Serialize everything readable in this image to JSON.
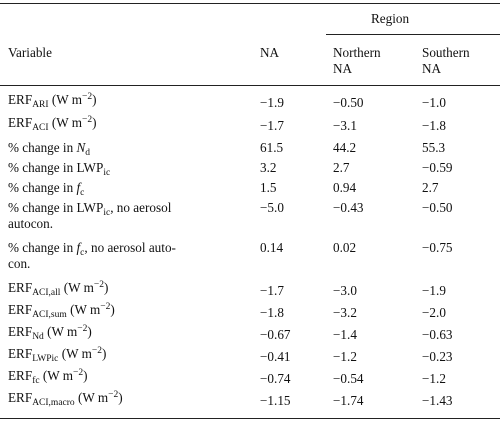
{
  "table": {
    "region_header": "Region",
    "columns": [
      "Variable",
      "NA",
      "Northern NA",
      "Southern NA"
    ],
    "rows": [
      {
        "label": "ERF_ARI (W m^-2)",
        "values": [
          "−1.9",
          "−0.50",
          "−1.0"
        ]
      },
      {
        "label": "ERF_ACI (W m^-2)",
        "values": [
          "−1.7",
          "−3.1",
          "−1.8"
        ]
      },
      {
        "label": "% change in N_d",
        "values": [
          "61.5",
          "44.2",
          "55.3"
        ]
      },
      {
        "label": "% change in LWP_ic",
        "values": [
          "3.2",
          "2.7",
          "−0.59"
        ]
      },
      {
        "label": "% change in f_c",
        "values": [
          "1.5",
          "0.94",
          "2.7"
        ]
      },
      {
        "label": "% change in LWP_ic, no aerosol autocon.",
        "values": [
          "−5.0",
          "−0.43",
          "−0.50"
        ]
      },
      {
        "label": "% change in f_c, no aerosol autocon.",
        "values": [
          "0.14",
          "0.02",
          "−0.75"
        ]
      },
      {
        "label": "ERF_ACI,all (W m^-2)",
        "values": [
          "−1.7",
          "−3.0",
          "−1.9"
        ]
      },
      {
        "label": "ERF_ACI,sum (W m^-2)",
        "values": [
          "−1.8",
          "−3.2",
          "−2.0"
        ]
      },
      {
        "label": "ERF_Nd (W m^-2)",
        "values": [
          "−0.67",
          "−1.4",
          "−0.63"
        ]
      },
      {
        "label": "ERF_LWPic (W m^-2)",
        "values": [
          "−0.41",
          "−1.2",
          "−0.23"
        ]
      },
      {
        "label": "ERF_fc (W m^-2)",
        "values": [
          "−0.74",
          "−0.54",
          "−1.2"
        ]
      },
      {
        "label": "ERF_ACI,macro (W m^-2)",
        "values": [
          "−1.15",
          "−1.74",
          "−1.43"
        ]
      }
    ]
  }
}
